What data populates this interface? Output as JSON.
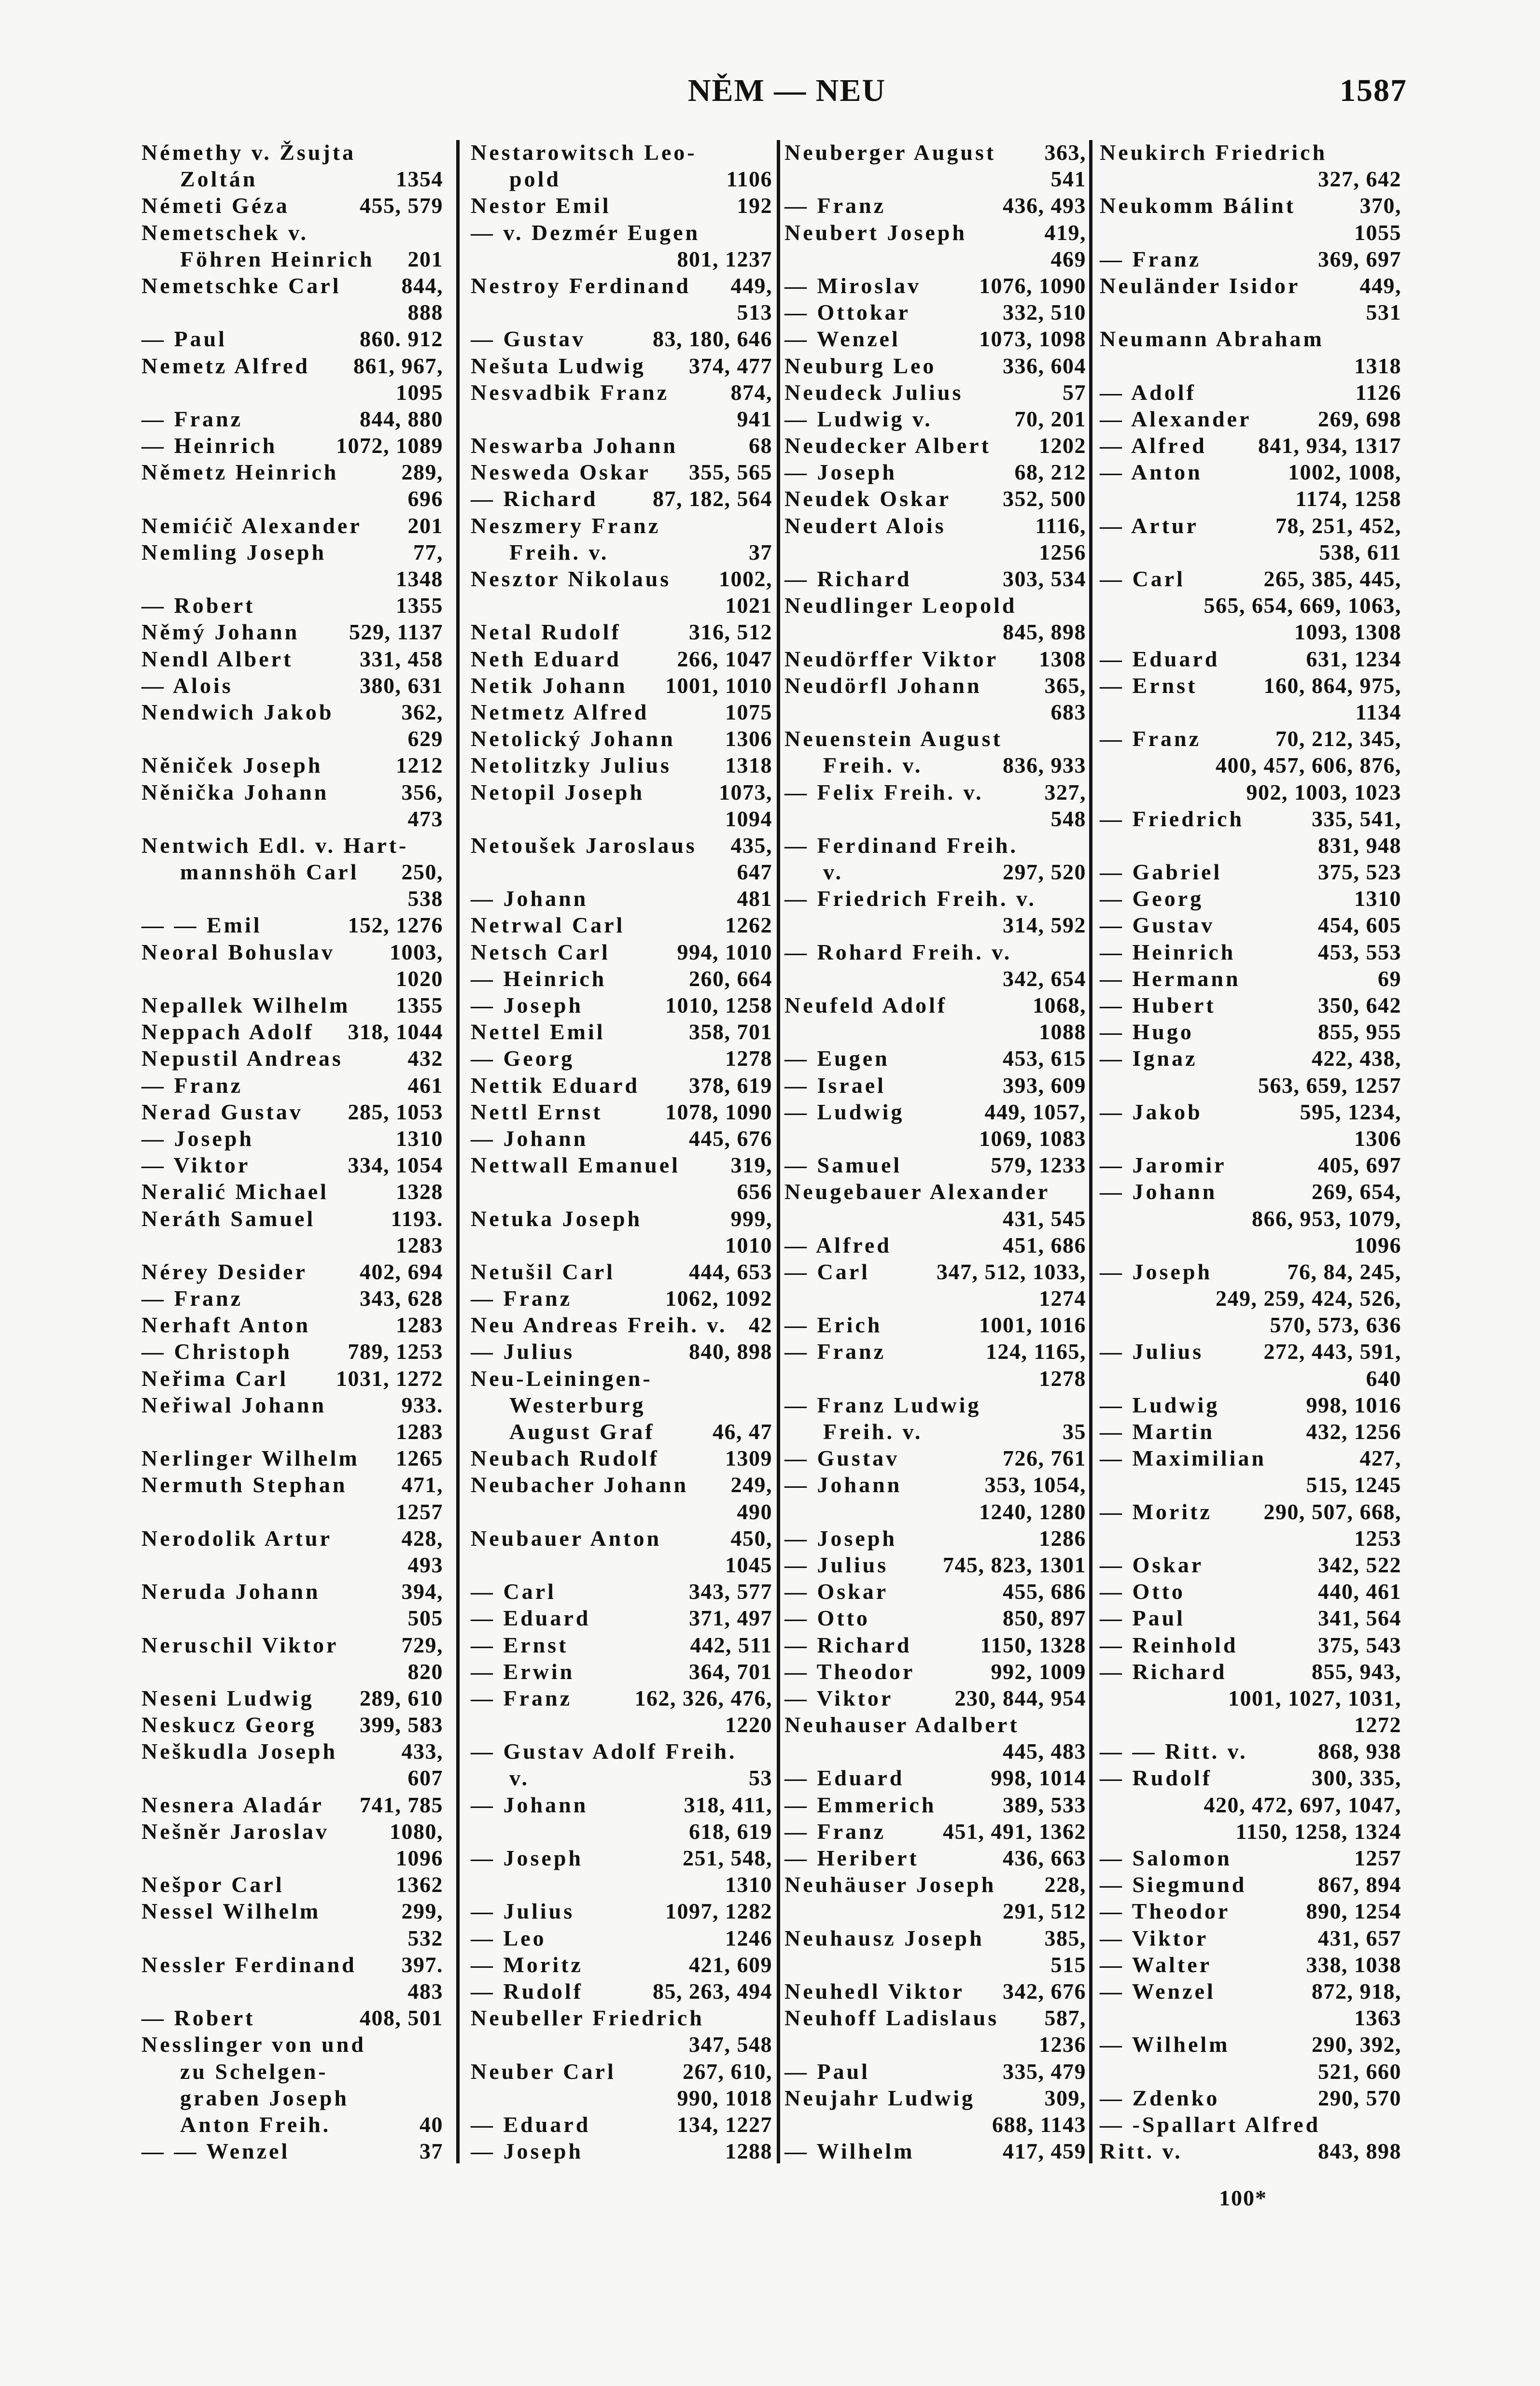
{
  "header": {
    "title": "NĚM — NEU",
    "page_number": "1587"
  },
  "footer": {
    "signature_mark": "100*"
  },
  "columns": [
    [
      {
        "t": "Némethy v. Žsujta"
      },
      {
        "t": "Zoltán",
        "n": "1354",
        "c": true
      },
      {
        "t": "Németi Géza",
        "n": "455, 579"
      },
      {
        "t": "Nemetschek v."
      },
      {
        "t": "Föhren Heinrich",
        "n": "201",
        "c": true
      },
      {
        "t": "Nemetschke Carl",
        "n": "844,"
      },
      {
        "t": "",
        "n": "888"
      },
      {
        "t": "— Paul",
        "n": "860. 912"
      },
      {
        "t": "Nemetz Alfred",
        "n": "861, 967,"
      },
      {
        "t": "",
        "n": "1095"
      },
      {
        "t": "— Franz",
        "n": "844, 880"
      },
      {
        "t": "— Heinrich",
        "n": "1072, 1089"
      },
      {
        "t": "Němetz Heinrich",
        "n": "289,"
      },
      {
        "t": "",
        "n": "696"
      },
      {
        "t": "Nemićič Alexander",
        "n": "201"
      },
      {
        "t": "Nemling Joseph",
        "n": "77,"
      },
      {
        "t": "",
        "n": "1348"
      },
      {
        "t": "— Robert",
        "n": "1355"
      },
      {
        "t": "Němý Johann",
        "n": "529, 1137"
      },
      {
        "t": "Nendl Albert",
        "n": "331, 458"
      },
      {
        "t": "— Alois",
        "n": "380, 631"
      },
      {
        "t": "Nendwich Jakob",
        "n": "362,"
      },
      {
        "t": "",
        "n": "629"
      },
      {
        "t": "Něniček Joseph",
        "n": "1212"
      },
      {
        "t": "Něnička Johann",
        "n": "356,"
      },
      {
        "t": "",
        "n": "473"
      },
      {
        "t": "Nentwich Edl. v. Hart-"
      },
      {
        "t": "mannshöh Carl",
        "n": "250,",
        "c": true
      },
      {
        "t": "",
        "n": "538"
      },
      {
        "t": "— — Emil",
        "n": "152, 1276"
      },
      {
        "t": "Neoral Bohuslav",
        "n": "1003,"
      },
      {
        "t": "",
        "n": "1020"
      },
      {
        "t": "Nepallek Wilhelm",
        "n": "1355"
      },
      {
        "t": "Neppach Adolf",
        "n": "318, 1044"
      },
      {
        "t": "Nepustil Andreas",
        "n": "432"
      },
      {
        "t": "— Franz",
        "n": "461"
      },
      {
        "t": "Nerad Gustav",
        "n": "285, 1053"
      },
      {
        "t": "— Joseph",
        "n": "1310"
      },
      {
        "t": "— Viktor",
        "n": "334, 1054"
      },
      {
        "t": "Neralić Michael",
        "n": "1328"
      },
      {
        "t": "Neráth Samuel",
        "n": "1193."
      },
      {
        "t": "",
        "n": "1283"
      },
      {
        "t": "Nérey Desider",
        "n": "402, 694"
      },
      {
        "t": "— Franz",
        "n": "343, 628"
      },
      {
        "t": "Nerhaft Anton",
        "n": "1283"
      },
      {
        "t": "— Christoph",
        "n": "789, 1253"
      },
      {
        "t": "Neřima Carl",
        "n": "1031, 1272"
      },
      {
        "t": "Neřiwal Johann",
        "n": "933."
      },
      {
        "t": "",
        "n": "1283"
      },
      {
        "t": "Nerlinger Wilhelm",
        "n": "1265"
      },
      {
        "t": "Nermuth Stephan",
        "n": "471,"
      },
      {
        "t": "",
        "n": "1257"
      },
      {
        "t": "Nerodolik Artur",
        "n": "428,"
      },
      {
        "t": "",
        "n": "493"
      },
      {
        "t": "Neruda Johann",
        "n": "394,"
      },
      {
        "t": "",
        "n": "505"
      },
      {
        "t": "Neruschil Viktor",
        "n": "729,"
      },
      {
        "t": "",
        "n": "820"
      },
      {
        "t": "Neseni Ludwig",
        "n": "289, 610"
      },
      {
        "t": "Neskucz Georg",
        "n": "399, 583"
      },
      {
        "t": "Neškudla Joseph",
        "n": "433,"
      },
      {
        "t": "",
        "n": "607"
      },
      {
        "t": "Nesnera Aladár",
        "n": "741, 785"
      },
      {
        "t": "Nešněr Jaroslav",
        "n": "1080,"
      },
      {
        "t": "",
        "n": "1096"
      },
      {
        "t": "Nešpor Carl",
        "n": "1362"
      },
      {
        "t": "Nessel Wilhelm",
        "n": "299,"
      },
      {
        "t": "",
        "n": "532"
      },
      {
        "t": "Nessler Ferdinand",
        "n": "397."
      },
      {
        "t": "",
        "n": "483"
      },
      {
        "t": "— Robert",
        "n": "408, 501"
      },
      {
        "t": "Nesslinger von und"
      },
      {
        "t": "zu Schelgen-",
        "c": true
      },
      {
        "t": "graben Joseph",
        "c": true
      },
      {
        "t": "Anton Freih.",
        "n": "40",
        "c": true
      },
      {
        "t": "— — Wenzel",
        "n": "37"
      }
    ],
    [
      {
        "t": "Nestarowitsch Leo-"
      },
      {
        "t": "pold",
        "n": "1106",
        "c": true
      },
      {
        "t": "Nestor Emil",
        "n": "192"
      },
      {
        "t": "— v. Dezmér Eugen"
      },
      {
        "t": "",
        "n": "801, 1237"
      },
      {
        "t": "Nestroy Ferdinand",
        "n": "449,"
      },
      {
        "t": "",
        "n": "513"
      },
      {
        "t": "— Gustav",
        "n": "83, 180, 646"
      },
      {
        "t": "Nešuta Ludwig",
        "n": "374, 477"
      },
      {
        "t": "Nesvadbik Franz",
        "n": "874,"
      },
      {
        "t": "",
        "n": "941"
      },
      {
        "t": "Neswarba Johann",
        "n": "68"
      },
      {
        "t": "Nesweda Oskar",
        "n": "355, 565"
      },
      {
        "t": "— Richard",
        "n": "87, 182, 564"
      },
      {
        "t": "Neszmery Franz"
      },
      {
        "t": "Freih. v.",
        "n": "37",
        "c": true
      },
      {
        "t": "Nesztor Nikolaus",
        "n": "1002,"
      },
      {
        "t": "",
        "n": "1021"
      },
      {
        "t": "Netal Rudolf",
        "n": "316, 512"
      },
      {
        "t": "Neth Eduard",
        "n": "266, 1047"
      },
      {
        "t": "Netik Johann",
        "n": "1001, 1010"
      },
      {
        "t": "Netmetz Alfred",
        "n": "1075"
      },
      {
        "t": "Netolický Johann",
        "n": "1306"
      },
      {
        "t": "Netolitzky Julius",
        "n": "1318"
      },
      {
        "t": "Netopil Joseph",
        "n": "1073,"
      },
      {
        "t": "",
        "n": "1094"
      },
      {
        "t": "Netoušek Jaroslaus",
        "n": "435,"
      },
      {
        "t": "",
        "n": "647"
      },
      {
        "t": "— Johann",
        "n": "481"
      },
      {
        "t": "Netrwal Carl",
        "n": "1262"
      },
      {
        "t": "Netsch Carl",
        "n": "994, 1010"
      },
      {
        "t": "— Heinrich",
        "n": "260, 664"
      },
      {
        "t": "— Joseph",
        "n": "1010, 1258"
      },
      {
        "t": "Nettel Emil",
        "n": "358, 701"
      },
      {
        "t": "— Georg",
        "n": "1278"
      },
      {
        "t": "Nettik Eduard",
        "n": "378, 619"
      },
      {
        "t": "Nettl Ernst",
        "n": "1078, 1090"
      },
      {
        "t": "— Johann",
        "n": "445, 676"
      },
      {
        "t": "Nettwall Emanuel",
        "n": "319,"
      },
      {
        "t": "",
        "n": "656"
      },
      {
        "t": "Netuka Joseph",
        "n": "999,"
      },
      {
        "t": "",
        "n": "1010"
      },
      {
        "t": "Netušil Carl",
        "n": "444, 653"
      },
      {
        "t": "— Franz",
        "n": "1062, 1092"
      },
      {
        "t": "Neu Andreas Freih. v.",
        "n": "42"
      },
      {
        "t": "— Julius",
        "n": "840, 898"
      },
      {
        "t": "Neu-Leiningen-"
      },
      {
        "t": "Westerburg",
        "c": true
      },
      {
        "t": "August Graf",
        "n": "46, 47",
        "c": true
      },
      {
        "t": "Neubach Rudolf",
        "n": "1309"
      },
      {
        "t": "Neubacher Johann",
        "n": "249,"
      },
      {
        "t": "",
        "n": "490"
      },
      {
        "t": "Neubauer Anton",
        "n": "450,"
      },
      {
        "t": "",
        "n": "1045"
      },
      {
        "t": "— Carl",
        "n": "343, 577"
      },
      {
        "t": "— Eduard",
        "n": "371, 497"
      },
      {
        "t": "— Ernst",
        "n": "442, 511"
      },
      {
        "t": "— Erwin",
        "n": "364, 701"
      },
      {
        "t": "— Franz",
        "n": "162, 326, 476,"
      },
      {
        "t": "",
        "n": "1220"
      },
      {
        "t": "— Gustav Adolf Freih."
      },
      {
        "t": "v.",
        "n": "53",
        "c": true
      },
      {
        "t": "— Johann",
        "n": "318, 411,"
      },
      {
        "t": "",
        "n": "618, 619"
      },
      {
        "t": "— Joseph",
        "n": "251, 548,"
      },
      {
        "t": "",
        "n": "1310"
      },
      {
        "t": "— Julius",
        "n": "1097, 1282"
      },
      {
        "t": "— Leo",
        "n": "1246"
      },
      {
        "t": "— Moritz",
        "n": "421, 609"
      },
      {
        "t": "— Rudolf",
        "n": "85, 263, 494"
      },
      {
        "t": "Neubeller Friedrich"
      },
      {
        "t": "",
        "n": "347, 548"
      },
      {
        "t": "Neuber Carl",
        "n": "267, 610,"
      },
      {
        "t": "",
        "n": "990, 1018"
      },
      {
        "t": "— Eduard",
        "n": "134, 1227"
      },
      {
        "t": "— Joseph",
        "n": "1288"
      }
    ],
    [
      {
        "t": "Neuberger August",
        "n": "363,"
      },
      {
        "t": "",
        "n": "541"
      },
      {
        "t": "— Franz",
        "n": "436, 493"
      },
      {
        "t": "Neubert Joseph",
        "n": "419,"
      },
      {
        "t": "",
        "n": "469"
      },
      {
        "t": "— Miroslav",
        "n": "1076, 1090"
      },
      {
        "t": "— Ottokar",
        "n": "332, 510"
      },
      {
        "t": "— Wenzel",
        "n": "1073, 1098"
      },
      {
        "t": "Neuburg Leo",
        "n": "336, 604"
      },
      {
        "t": "Neudeck Julius",
        "n": "57"
      },
      {
        "t": "— Ludwig v.",
        "n": "70, 201"
      },
      {
        "t": "Neudecker Albert",
        "n": "1202"
      },
      {
        "t": "— Joseph",
        "n": "68, 212"
      },
      {
        "t": "Neudek Oskar",
        "n": "352, 500"
      },
      {
        "t": "Neudert Alois",
        "n": "1116,"
      },
      {
        "t": "",
        "n": "1256"
      },
      {
        "t": "— Richard",
        "n": "303, 534"
      },
      {
        "t": "Neudlinger Leopold"
      },
      {
        "t": "",
        "n": "845, 898"
      },
      {
        "t": "Neudörffer Viktor",
        "n": "1308"
      },
      {
        "t": "Neudörfl Johann",
        "n": "365,"
      },
      {
        "t": "",
        "n": "683"
      },
      {
        "t": "Neuenstein August"
      },
      {
        "t": "Freih. v.",
        "n": "836, 933",
        "c": true
      },
      {
        "t": "— Felix Freih. v.",
        "n": "327,"
      },
      {
        "t": "",
        "n": "548"
      },
      {
        "t": "— Ferdinand Freih."
      },
      {
        "t": "v.",
        "n": "297, 520",
        "c": true
      },
      {
        "t": "— Friedrich Freih. v."
      },
      {
        "t": "",
        "n": "314, 592"
      },
      {
        "t": "— Rohard Freih. v."
      },
      {
        "t": "",
        "n": "342, 654"
      },
      {
        "t": "Neufeld Adolf",
        "n": "1068,"
      },
      {
        "t": "",
        "n": "1088"
      },
      {
        "t": "— Eugen",
        "n": "453, 615"
      },
      {
        "t": "— Israel",
        "n": "393, 609"
      },
      {
        "t": "— Ludwig",
        "n": "449, 1057,"
      },
      {
        "t": "",
        "n": "1069, 1083"
      },
      {
        "t": "— Samuel",
        "n": "579, 1233"
      },
      {
        "t": "Neugebauer Alexander"
      },
      {
        "t": "",
        "n": "431, 545"
      },
      {
        "t": "— Alfred",
        "n": "451, 686"
      },
      {
        "t": "— Carl",
        "n": "347, 512, 1033,"
      },
      {
        "t": "",
        "n": "1274"
      },
      {
        "t": "— Erich",
        "n": "1001, 1016"
      },
      {
        "t": "— Franz",
        "n": "124, 1165,"
      },
      {
        "t": "",
        "n": "1278"
      },
      {
        "t": "— Franz Ludwig"
      },
      {
        "t": "Freih. v.",
        "n": "35",
        "c": true
      },
      {
        "t": "— Gustav",
        "n": "726, 761"
      },
      {
        "t": "— Johann",
        "n": "353, 1054,"
      },
      {
        "t": "",
        "n": "1240, 1280"
      },
      {
        "t": "— Joseph",
        "n": "1286"
      },
      {
        "t": "— Julius",
        "n": "745, 823, 1301"
      },
      {
        "t": "— Oskar",
        "n": "455, 686"
      },
      {
        "t": "— Otto",
        "n": "850, 897"
      },
      {
        "t": "— Richard",
        "n": "1150, 1328"
      },
      {
        "t": "— Theodor",
        "n": "992, 1009"
      },
      {
        "t": "— Viktor",
        "n": "230, 844, 954"
      },
      {
        "t": "Neuhauser Adalbert"
      },
      {
        "t": "",
        "n": "445, 483"
      },
      {
        "t": "— Eduard",
        "n": "998, 1014"
      },
      {
        "t": "— Emmerich",
        "n": "389, 533"
      },
      {
        "t": "— Franz",
        "n": "451, 491, 1362"
      },
      {
        "t": "— Heribert",
        "n": "436, 663"
      },
      {
        "t": "Neuhäuser Joseph",
        "n": "228,"
      },
      {
        "t": "",
        "n": "291, 512"
      },
      {
        "t": "Neuhausz Joseph",
        "n": "385,"
      },
      {
        "t": "",
        "n": "515"
      },
      {
        "t": "Neuhedl Viktor",
        "n": "342, 676"
      },
      {
        "t": "Neuhoff Ladislaus",
        "n": "587,"
      },
      {
        "t": "",
        "n": "1236"
      },
      {
        "t": "— Paul",
        "n": "335, 479"
      },
      {
        "t": "Neujahr Ludwig",
        "n": "309,"
      },
      {
        "t": "",
        "n": "688, 1143"
      },
      {
        "t": "— Wilhelm",
        "n": "417, 459"
      }
    ],
    [
      {
        "t": "Neukirch Friedrich"
      },
      {
        "t": "",
        "n": "327, 642"
      },
      {
        "t": "Neukomm Bálint",
        "n": "370,"
      },
      {
        "t": "",
        "n": "1055"
      },
      {
        "t": "— Franz",
        "n": "369, 697"
      },
      {
        "t": "Neuländer Isidor",
        "n": "449,"
      },
      {
        "t": "",
        "n": "531"
      },
      {
        "t": "Neumann Abraham"
      },
      {
        "t": "",
        "n": "1318"
      },
      {
        "t": "— Adolf",
        "n": "1126"
      },
      {
        "t": "— Alexander",
        "n": "269, 698"
      },
      {
        "t": "— Alfred",
        "n": "841, 934, 1317"
      },
      {
        "t": "— Anton",
        "n": "1002, 1008,"
      },
      {
        "t": "",
        "n": "1174, 1258"
      },
      {
        "t": "— Artur",
        "n": "78, 251, 452,"
      },
      {
        "t": "",
        "n": "538, 611"
      },
      {
        "t": "— Carl",
        "n": "265, 385, 445,"
      },
      {
        "t": "",
        "n": "565, 654, 669, 1063,"
      },
      {
        "t": "",
        "n": "1093, 1308"
      },
      {
        "t": "— Eduard",
        "n": "631, 1234"
      },
      {
        "t": "— Ernst",
        "n": "160, 864, 975,"
      },
      {
        "t": "",
        "n": "1134"
      },
      {
        "t": "— Franz",
        "n": "70, 212, 345,"
      },
      {
        "t": "",
        "n": "400, 457, 606, 876,"
      },
      {
        "t": "",
        "n": "902, 1003, 1023"
      },
      {
        "t": "— Friedrich",
        "n": "335, 541,"
      },
      {
        "t": "",
        "n": "831, 948"
      },
      {
        "t": "— Gabriel",
        "n": "375, 523"
      },
      {
        "t": "— Georg",
        "n": "1310"
      },
      {
        "t": "— Gustav",
        "n": "454, 605"
      },
      {
        "t": "— Heinrich",
        "n": "453, 553"
      },
      {
        "t": "— Hermann",
        "n": "69"
      },
      {
        "t": "— Hubert",
        "n": "350, 642"
      },
      {
        "t": "— Hugo",
        "n": "855, 955"
      },
      {
        "t": "— Ignaz",
        "n": "422, 438,"
      },
      {
        "t": "",
        "n": "563, 659, 1257"
      },
      {
        "t": "— Jakob",
        "n": "595, 1234,"
      },
      {
        "t": "",
        "n": "1306"
      },
      {
        "t": "— Jaromir",
        "n": "405, 697"
      },
      {
        "t": "— Johann",
        "n": "269, 654,"
      },
      {
        "t": "",
        "n": "866, 953, 1079,"
      },
      {
        "t": "",
        "n": "1096"
      },
      {
        "t": "— Joseph",
        "n": "76, 84, 245,"
      },
      {
        "t": "",
        "n": "249, 259, 424, 526,"
      },
      {
        "t": "",
        "n": "570, 573, 636"
      },
      {
        "t": "— Julius",
        "n": "272, 443, 591,"
      },
      {
        "t": "",
        "n": "640"
      },
      {
        "t": "— Ludwig",
        "n": "998, 1016"
      },
      {
        "t": "— Martin",
        "n": "432, 1256"
      },
      {
        "t": "— Maximilian",
        "n": "427,"
      },
      {
        "t": "",
        "n": "515, 1245"
      },
      {
        "t": "— Moritz",
        "n": "290, 507, 668,"
      },
      {
        "t": "",
        "n": "1253"
      },
      {
        "t": "— Oskar",
        "n": "342, 522"
      },
      {
        "t": "— Otto",
        "n": "440, 461"
      },
      {
        "t": "— Paul",
        "n": "341, 564"
      },
      {
        "t": "— Reinhold",
        "n": "375, 543"
      },
      {
        "t": "— Richard",
        "n": "855, 943,"
      },
      {
        "t": "",
        "n": "1001, 1027, 1031,"
      },
      {
        "t": "",
        "n": "1272"
      },
      {
        "t": "— — Ritt. v.",
        "n": "868, 938"
      },
      {
        "t": "— Rudolf",
        "n": "300, 335,"
      },
      {
        "t": "",
        "n": "420, 472, 697, 1047,"
      },
      {
        "t": "",
        "n": "1150, 1258, 1324"
      },
      {
        "t": "— Salomon",
        "n": "1257"
      },
      {
        "t": "— Siegmund",
        "n": "867, 894"
      },
      {
        "t": "— Theodor",
        "n": "890, 1254"
      },
      {
        "t": "— Viktor",
        "n": "431, 657"
      },
      {
        "t": "— Walter",
        "n": "338, 1038"
      },
      {
        "t": "— Wenzel",
        "n": "872, 918,"
      },
      {
        "t": "",
        "n": "1363"
      },
      {
        "t": "— Wilhelm",
        "n": "290, 392,"
      },
      {
        "t": "",
        "n": "521, 660"
      },
      {
        "t": "— Zdenko",
        "n": "290, 570"
      },
      {
        "t": "— -Spallart Alfred"
      },
      {
        "t": "Ritt. v.",
        "n": "843, 898"
      }
    ]
  ]
}
